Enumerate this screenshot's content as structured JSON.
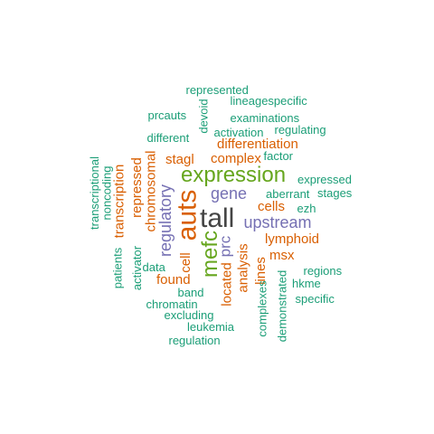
{
  "colors": {
    "darkgray": "#444444",
    "orange": "#d95f02",
    "purple": "#7570b3",
    "green": "#66a61e",
    "teal": "#1b9e77"
  },
  "words": [
    {
      "text": "tall",
      "color": "darkgray"
    },
    {
      "text": "auts",
      "color": "orange"
    },
    {
      "text": "expression",
      "color": "green"
    },
    {
      "text": "mefc",
      "color": "green"
    },
    {
      "text": "upstream",
      "color": "purple"
    },
    {
      "text": "gene",
      "color": "purple"
    },
    {
      "text": "regulatory",
      "color": "purple"
    },
    {
      "text": "prc",
      "color": "purple"
    },
    {
      "text": "differentiation",
      "color": "orange"
    },
    {
      "text": "transcription",
      "color": "orange"
    },
    {
      "text": "repressed",
      "color": "orange"
    },
    {
      "text": "lymphoid",
      "color": "orange"
    },
    {
      "text": "complex",
      "color": "orange"
    },
    {
      "text": "stagl",
      "color": "orange"
    },
    {
      "text": "cells",
      "color": "orange"
    },
    {
      "text": "msx",
      "color": "orange"
    },
    {
      "text": "found",
      "color": "orange"
    },
    {
      "text": "located",
      "color": "orange"
    },
    {
      "text": "analysis",
      "color": "orange"
    },
    {
      "text": "chromosomal",
      "color": "orange"
    },
    {
      "text": "cell",
      "color": "orange"
    },
    {
      "text": "lines",
      "color": "orange"
    },
    {
      "text": "represented",
      "color": "teal"
    },
    {
      "text": "lineagespecific",
      "color": "teal"
    },
    {
      "text": "prcauts",
      "color": "teal"
    },
    {
      "text": "examinations",
      "color": "teal"
    },
    {
      "text": "devoid",
      "color": "teal"
    },
    {
      "text": "activation",
      "color": "teal"
    },
    {
      "text": "regulating",
      "color": "teal"
    },
    {
      "text": "different",
      "color": "teal"
    },
    {
      "text": "factor",
      "color": "teal"
    },
    {
      "text": "expressed",
      "color": "teal"
    },
    {
      "text": "aberrant",
      "color": "teal"
    },
    {
      "text": "stages",
      "color": "teal"
    },
    {
      "text": "ezh",
      "color": "teal"
    },
    {
      "text": "transcriptional",
      "color": "teal"
    },
    {
      "text": "noncoding",
      "color": "teal"
    },
    {
      "text": "patients",
      "color": "teal"
    },
    {
      "text": "activator",
      "color": "teal"
    },
    {
      "text": "data",
      "color": "teal"
    },
    {
      "text": "band",
      "color": "teal"
    },
    {
      "text": "chromatin",
      "color": "teal"
    },
    {
      "text": "excluding",
      "color": "teal"
    },
    {
      "text": "leukemia",
      "color": "teal"
    },
    {
      "text": "regulation",
      "color": "teal"
    },
    {
      "text": "regions",
      "color": "teal"
    },
    {
      "text": "hkme",
      "color": "teal"
    },
    {
      "text": "specific",
      "color": "teal"
    },
    {
      "text": "complexes",
      "color": "teal"
    },
    {
      "text": "demonstrated",
      "color": "teal"
    }
  ]
}
